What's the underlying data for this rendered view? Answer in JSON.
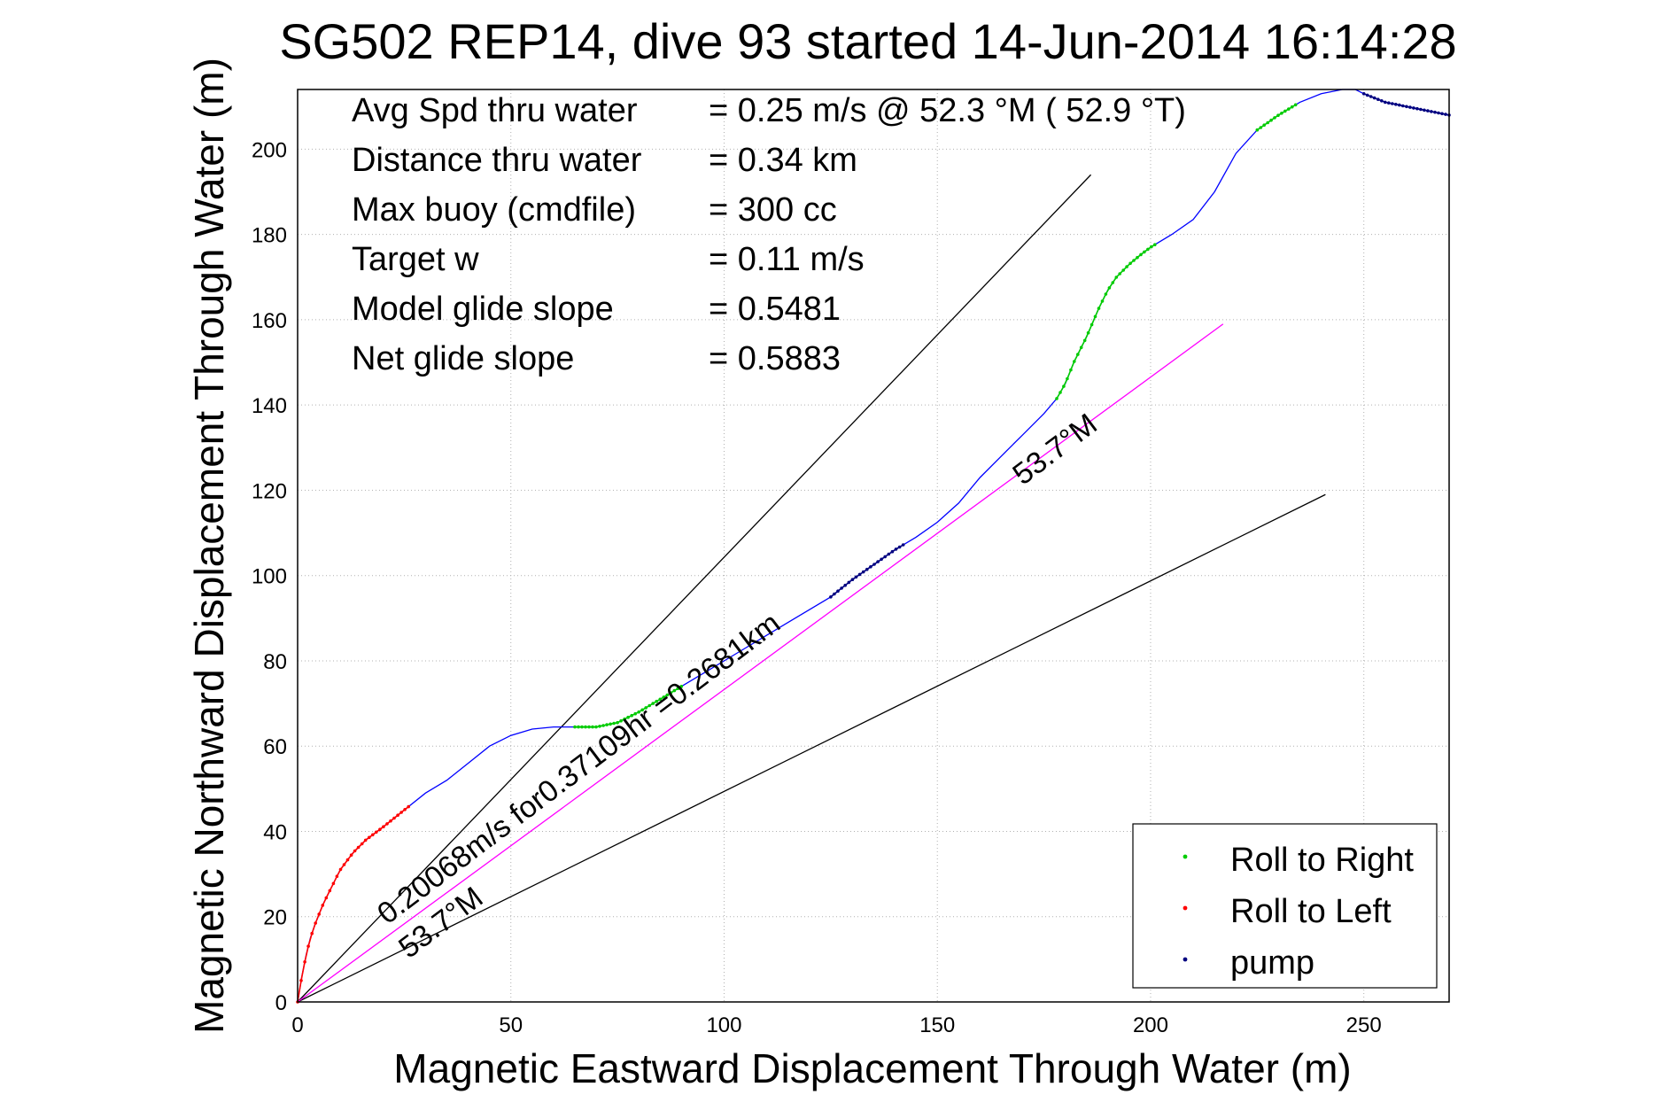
{
  "chart_data": {
    "type": "line",
    "title": "SG502 REP14, dive 93 started 14-Jun-2014 16:14:28",
    "xlabel": "Magnetic Eastward Displacement Through Water (m)",
    "ylabel": "Magnetic Northward Displacement Through Water (m)",
    "xlim": [
      0,
      270
    ],
    "ylim": [
      0,
      214
    ],
    "xticks": [
      0,
      50,
      100,
      150,
      200,
      250
    ],
    "yticks": [
      0,
      20,
      40,
      60,
      80,
      100,
      120,
      140,
      160,
      180,
      200
    ],
    "grid": true,
    "legend_position": "bottom-right",
    "stats": [
      {
        "label": "Avg Spd thru water",
        "value": "=  0.25 m/s @  52.3 °M ( 52.9 °T)"
      },
      {
        "label": "Distance thru water",
        "value": "=  0.34 km"
      },
      {
        "label": "Max buoy (cmdfile)",
        "value": "= 300 cc"
      },
      {
        "label": "Target w",
        "value": "= 0.11 m/s"
      },
      {
        "label": "Model glide slope",
        "value": "= 0.5481"
      },
      {
        "label": "Net glide slope",
        "value": "= 0.5883"
      }
    ],
    "track": {
      "color": "#0000ff",
      "x": [
        0,
        0.5,
        1,
        2,
        3,
        4,
        6,
        8,
        10,
        13,
        16,
        20,
        25,
        30,
        35,
        40,
        45,
        50,
        55,
        60,
        65,
        70,
        75,
        80,
        85,
        90,
        95,
        100,
        105,
        110,
        115,
        120,
        125,
        130,
        135,
        140,
        145,
        150,
        155,
        160,
        165,
        170,
        175,
        178,
        180,
        182,
        185,
        188,
        190,
        192,
        195,
        198,
        200,
        205,
        210,
        215,
        220,
        225,
        230,
        235,
        240,
        245,
        248,
        250,
        255,
        260,
        265,
        270
      ],
      "y": [
        0,
        3,
        6,
        11,
        15,
        18,
        23,
        27,
        31,
        35,
        38,
        41,
        45,
        49,
        52,
        56,
        60,
        62.5,
        64,
        64.5,
        64.5,
        64.5,
        65.5,
        68,
        71,
        74,
        77,
        80,
        83,
        86,
        89,
        92,
        95,
        99,
        102.5,
        106,
        109,
        112.5,
        117,
        123,
        128,
        133,
        138,
        141.5,
        145,
        150,
        156,
        163,
        167,
        170,
        173,
        175.5,
        177,
        180,
        183.5,
        190,
        199,
        204.5,
        208,
        211,
        213,
        214,
        214,
        213,
        211,
        210,
        209,
        208
      ]
    },
    "segments": [
      {
        "name": "Roll to Right",
        "color": "#00cc00",
        "x_range": [
          65,
          90
        ]
      },
      {
        "name": "Roll to Right",
        "color": "#00cc00",
        "x_range": [
          178,
          201
        ]
      },
      {
        "name": "Roll to Right",
        "color": "#00cc00",
        "x_range": [
          225,
          234
        ]
      },
      {
        "name": "Roll to Left",
        "color": "#ff0000",
        "x_range": [
          0,
          26
        ]
      },
      {
        "name": "pump",
        "color": "#000080",
        "x_range": [
          125,
          142
        ]
      },
      {
        "name": "pump",
        "color": "#000080",
        "x_range": [
          250,
          270
        ]
      }
    ],
    "reference_lines": [
      {
        "color": "#000000",
        "x": [
          0,
          186
        ],
        "y": [
          0,
          194
        ]
      },
      {
        "color": "#000000",
        "x": [
          0,
          241
        ],
        "y": [
          0,
          119
        ]
      },
      {
        "color": "#ff00ff",
        "x": [
          0,
          217
        ],
        "y": [
          0,
          159
        ]
      }
    ],
    "annotations": [
      {
        "text": "53.7°M",
        "x": 170,
        "y": 121,
        "angle": 37
      },
      {
        "text": "53.7°M",
        "x": 26,
        "y": 10,
        "angle": 37
      },
      {
        "text": "0.20068m/s for0.37109hr =0.2681km",
        "x": 21,
        "y": 18,
        "angle": 37
      }
    ],
    "legend": [
      {
        "label": "Roll to Right",
        "color": "#00cc00"
      },
      {
        "label": "Roll to Left",
        "color": "#ff0000"
      },
      {
        "label": "pump",
        "color": "#000080"
      }
    ]
  }
}
